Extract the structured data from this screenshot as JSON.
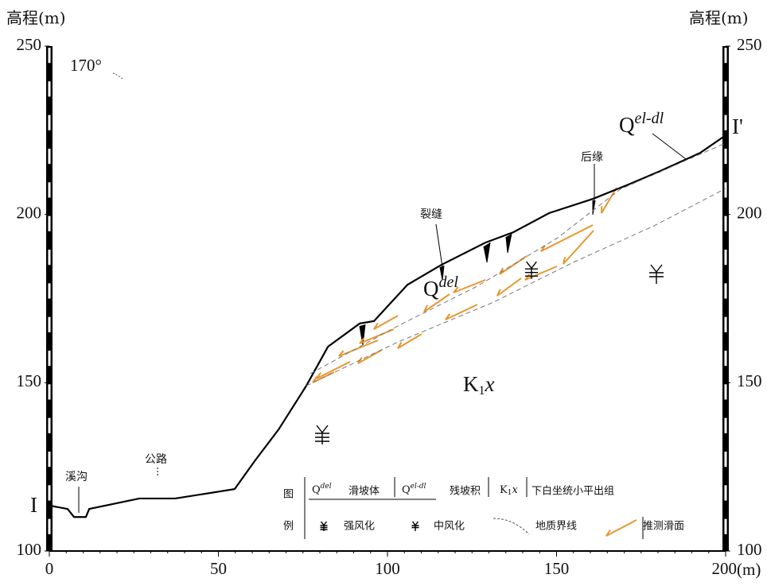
{
  "chart_data": {
    "type": "line",
    "y_label": "高程(m)",
    "y2_label": "高程(m)",
    "x_label": "(m)",
    "xlim": [
      0,
      200
    ],
    "xticks": [
      0,
      50,
      100,
      150,
      200
    ],
    "ylim": [
      100,
      250
    ],
    "yticks": [
      100,
      150,
      200,
      250
    ],
    "y2lim": [
      100,
      250
    ],
    "y2ticks": [
      100,
      150,
      200,
      250
    ],
    "series": [
      {
        "color": "#000000",
        "dash": false,
        "x": [
          0,
          5.4,
          7.3,
          10.8,
          11.8,
          26.6,
          37.2,
          54.8,
          60.7,
          67.8,
          76,
          82.4,
          91.8,
          96,
          105.9,
          115.9,
          128.9,
          137.2,
          147.8,
          160.7,
          171.3,
          180.7,
          192.5,
          200
        ],
        "values": [
          113.5,
          112.5,
          110.1,
          110.1,
          112.5,
          115.6,
          115.6,
          118.4,
          126.7,
          136.1,
          149.1,
          160.7,
          167.6,
          168.3,
          179.1,
          185,
          191.6,
          194.7,
          200.4,
          204.6,
          208.9,
          212.9,
          218.3,
          223.5
        ]
      },
      {
        "color": "#777777",
        "dash": true,
        "x": [
          77.2,
          103.1,
          126.6,
          150.1,
          168.9,
          200
        ],
        "values": [
          152.7,
          166.9,
          178.7,
          192.9,
          207.5,
          221.2
        ]
      },
      {
        "color": "#777777",
        "dash": true,
        "x": [
          76,
          103.1,
          131.3,
          154.8,
          178.4,
          200
        ],
        "values": [
          149.1,
          162.1,
          173.9,
          185.7,
          196.4,
          207.7
        ]
      }
    ],
    "annotations": {
      "angle": "170°",
      "section_start": "I",
      "section_end": "I'",
      "stream": "溪沟",
      "road": "公路",
      "crack": "裂缝",
      "rear_edge": "后缘"
    },
    "units": {
      "qdel": {
        "base": "Q",
        "sup": "del"
      },
      "qeldl": {
        "base": "Q",
        "sup": "el-dl"
      },
      "k1x": {
        "base": "K",
        "sub": "1",
        "tail": "x"
      }
    },
    "legend": {
      "title": [
        "图",
        "例"
      ],
      "items": [
        {
          "symbol": {
            "base": "Q",
            "sup": "del"
          },
          "label": "滑坡体"
        },
        {
          "symbol": {
            "base": "Q",
            "sup": "el-dl"
          },
          "label": "残坡积"
        },
        {
          "symbol": {
            "base": "K",
            "sub": "1",
            "tail": "x"
          },
          "label": "下白坐统小平出组"
        },
        {
          "label": "强风化"
        },
        {
          "label": "中风化"
        },
        {
          "label": "地质界线"
        },
        {
          "label": "推测滑面"
        }
      ]
    }
  }
}
